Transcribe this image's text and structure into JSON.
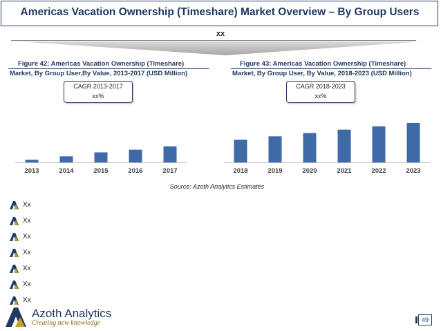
{
  "header": {
    "title": "Americas Vacation Ownership (Timeshare) Market Overview – By Group Users",
    "subhead": "xx"
  },
  "figures": [
    {
      "title": "Figure 42: Americas Vacation Ownership (Timeshare)",
      "subtitle": "Market, By Group User,By Value, 2013-2017 (USD Million)",
      "cagr_label": "CAGR 2013-2017",
      "cagr_value": "xx%"
    },
    {
      "title": "Figure 43: Americas Vacation Ownership (Timeshare)",
      "subtitle": "Market, By Group User, By Value, 2018-2023 (USD Million)",
      "cagr_label": "CAGR 2018-2023",
      "cagr_value": "xx%"
    }
  ],
  "chart_data": [
    {
      "type": "bar",
      "categories": [
        "2013",
        "2014",
        "2015",
        "2016",
        "2017"
      ],
      "values": [
        4,
        9,
        15,
        19,
        24
      ],
      "ylim": [
        0,
        60
      ],
      "bar_color": "#3e6aa7",
      "grid": false
    },
    {
      "type": "bar",
      "categories": [
        "2018",
        "2019",
        "2020",
        "2021",
        "2022",
        "2023"
      ],
      "values": [
        34,
        39,
        44,
        49,
        54,
        59
      ],
      "ylim": [
        0,
        60
      ],
      "bar_color": "#3e6aa7",
      "grid": false
    }
  ],
  "source": "Source: Azoth Analytics Estimates",
  "bullets": [
    "Xx",
    "Xx",
    "Xx",
    "Xx",
    "Xx",
    "Xx",
    "Xx"
  ],
  "footer": {
    "brand": "Azoth Analytics",
    "tagline": "Creating new knowledge",
    "page": "49"
  },
  "colors": {
    "navy": "#1f3864",
    "bar": "#3e6aa7",
    "gold": "#c9a227"
  }
}
